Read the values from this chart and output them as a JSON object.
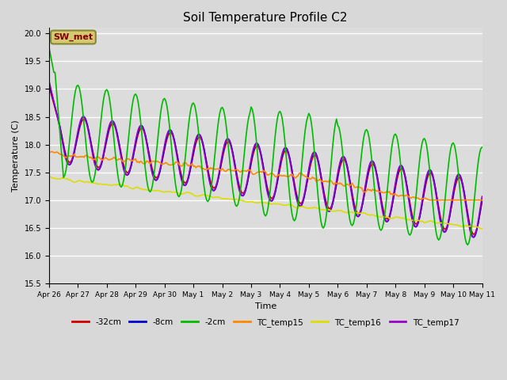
{
  "title": "Soil Temperature Profile C2",
  "xlabel": "Time",
  "ylabel": "Temperature (C)",
  "ylim": [
    15.5,
    20.1
  ],
  "background_color": "#dcdcdc",
  "plot_bg_color": "#dcdcdc",
  "grid_color": "white",
  "annotation_text": "SW_met",
  "annotation_bg": "#d4c870",
  "annotation_fg": "#800000",
  "tick_labels": [
    "Apr 26",
    "Apr 27",
    "Apr 28",
    "Apr 29",
    "Apr 30",
    "May 1",
    "May 2",
    "May 3",
    "May 4",
    "May 5",
    "May 6",
    "May 7",
    "May 8",
    "May 9",
    "May 10",
    "May 11"
  ],
  "series": {
    "neg32cm": {
      "color": "#cc0000",
      "label": "-32cm",
      "lw": 1.2
    },
    "neg8cm": {
      "color": "#0000cc",
      "label": "-8cm",
      "lw": 1.2
    },
    "neg2cm": {
      "color": "#00bb00",
      "label": "-2cm",
      "lw": 1.2
    },
    "tc15": {
      "color": "#ff8800",
      "label": "TC_temp15",
      "lw": 1.2
    },
    "tc16": {
      "color": "#dddd00",
      "label": "TC_temp16",
      "lw": 1.2
    },
    "tc17": {
      "color": "#9900cc",
      "label": "TC_temp17",
      "lw": 1.2
    }
  }
}
